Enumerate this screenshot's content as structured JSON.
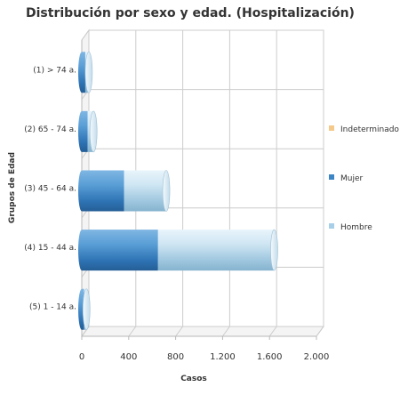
{
  "chart_data": {
    "type": "bar",
    "orientation": "horizontal",
    "stacked": true,
    "three_d": true,
    "title": "Distribución por sexo y edad. (Hospitalización)",
    "xlabel": "Casos",
    "ylabel": "Grupos de Edad",
    "xlim": [
      0,
      2000
    ],
    "x_ticks": [
      "0",
      "400",
      "800",
      "1.200",
      "1.600",
      "2.000"
    ],
    "x_tick_values": [
      0,
      400,
      800,
      1200,
      1600,
      2000
    ],
    "categories": [
      "(1) > 74 a.",
      "(2) 65 - 74 a.",
      "(3) 45 - 64 a.",
      "(4) 15 - 44 a.",
      "(5) 1 - 14 a."
    ],
    "series": [
      {
        "name": "Indeterminado",
        "values": [
          0,
          0,
          0,
          0,
          0
        ],
        "color": "#f5c98a"
      },
      {
        "name": "Mujer",
        "values": [
          30,
          50,
          360,
          650,
          20
        ],
        "color": "#3d86c6"
      },
      {
        "name": "Hombre",
        "values": [
          30,
          50,
          360,
          990,
          20
        ],
        "color": "#a8cfe8"
      }
    ],
    "legend": {
      "position": "right",
      "entries": [
        "Indeterminado",
        "Mujer",
        "Hombre"
      ]
    },
    "grid": true
  }
}
